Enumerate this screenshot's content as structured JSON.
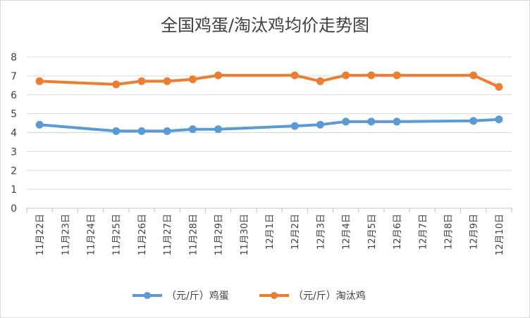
{
  "chart_data": {
    "type": "line",
    "title": "全国鸡蛋/淘汰鸡均价走势图",
    "categories": [
      "11月22日",
      "11月23日",
      "11月24日",
      "11月25日",
      "11月26日",
      "11月27日",
      "11月28日",
      "11月29日",
      "11月30日",
      "12月1日",
      "12月2日",
      "12月3日",
      "12月4日",
      "12月5日",
      "12月6日",
      "12月7日",
      "12月8日",
      "12月9日",
      "12月10日"
    ],
    "ylim": [
      0,
      8
    ],
    "yticks": [
      0,
      1,
      2,
      3,
      4,
      5,
      6,
      7,
      8
    ],
    "grid": true,
    "legend_position": "bottom",
    "series": [
      {
        "name": "（元/斤）鸡蛋",
        "color": "#5b9bd5",
        "values": [
          4.42,
          null,
          null,
          4.08,
          4.08,
          4.08,
          4.18,
          4.18,
          null,
          null,
          4.35,
          4.42,
          4.58,
          4.58,
          4.58,
          null,
          null,
          4.62,
          4.7
        ]
      },
      {
        "name": "（元/斤）淘汰鸡",
        "color": "#ed7d31",
        "values": [
          6.72,
          null,
          null,
          6.55,
          6.72,
          6.72,
          6.82,
          7.03,
          null,
          null,
          7.03,
          6.72,
          7.03,
          7.03,
          7.03,
          null,
          null,
          7.03,
          6.42
        ]
      }
    ]
  }
}
